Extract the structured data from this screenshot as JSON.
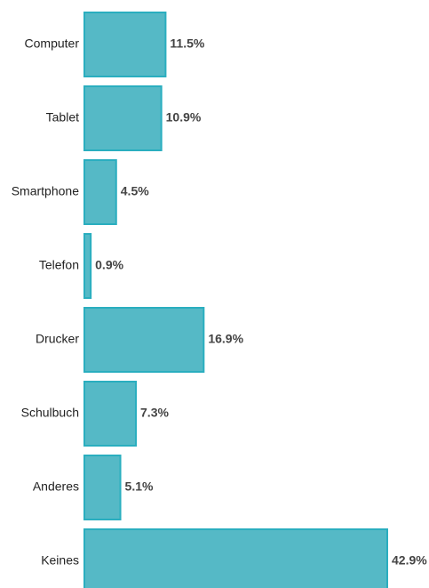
{
  "chart_data": {
    "type": "bar",
    "orientation": "horizontal",
    "title": "",
    "xlabel": "",
    "ylabel": "",
    "categories": [
      "Computer",
      "Tablet",
      "Smartphone",
      "Telefon",
      "Drucker",
      "Schulbuch",
      "Anderes",
      "Keines"
    ],
    "values": [
      11.5,
      10.9,
      4.5,
      0.9,
      16.9,
      7.3,
      5.1,
      42.9
    ],
    "value_labels": [
      "11.5%",
      "10.9%",
      "4.5%",
      "0.9%",
      "16.9%",
      "7.3%",
      "5.1%",
      "42.9%"
    ],
    "xlim": [
      0,
      42.9
    ],
    "grid": false,
    "legend": "none",
    "colors": {
      "bar_fill": "#55b9c6",
      "bar_stroke": "#2aaebf",
      "category_text": "#222222",
      "value_text": "#444444"
    }
  }
}
